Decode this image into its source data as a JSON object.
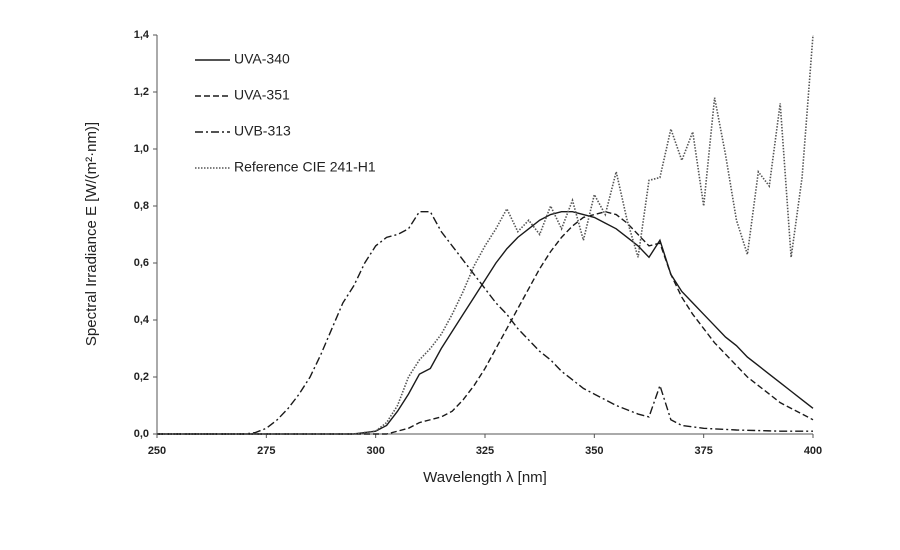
{
  "chart_data": {
    "type": "line",
    "xlabel": "Wavelength λ [nm]",
    "ylabel": "Spectral Irradiance E [W/(m²·nm)]",
    "x": [
      250,
      252.5,
      255,
      257.5,
      260,
      262.5,
      265,
      267.5,
      270,
      272.5,
      275,
      277.5,
      280,
      282.5,
      285,
      287.5,
      290,
      292.5,
      295,
      297.5,
      300,
      302.5,
      305,
      307.5,
      310,
      312.5,
      315,
      317.5,
      320,
      322.5,
      325,
      327.5,
      330,
      332.5,
      335,
      337.5,
      340,
      342.5,
      345,
      347.5,
      350,
      352.5,
      355,
      357.5,
      360,
      362.5,
      365,
      367.5,
      370,
      372.5,
      375,
      377.5,
      380,
      382.5,
      385,
      387.5,
      390,
      392.5,
      395,
      397.5,
      400
    ],
    "series": [
      {
        "name": "UVA-340",
        "color": "#1a1a1a",
        "line_style": "solid",
        "values": [
          0,
          0,
          0,
          0,
          0,
          0,
          0,
          0,
          0,
          0,
          0,
          0,
          0,
          0,
          0,
          0,
          0,
          0,
          0,
          0.005,
          0.01,
          0.03,
          0.08,
          0.14,
          0.21,
          0.23,
          0.3,
          0.36,
          0.42,
          0.48,
          0.54,
          0.6,
          0.65,
          0.69,
          0.72,
          0.75,
          0.77,
          0.78,
          0.78,
          0.77,
          0.76,
          0.74,
          0.72,
          0.69,
          0.66,
          0.62,
          0.68,
          0.56,
          0.5,
          0.46,
          0.42,
          0.38,
          0.34,
          0.31,
          0.27,
          0.24,
          0.21,
          0.18,
          0.15,
          0.12,
          0.09
        ]
      },
      {
        "name": "UVA-351",
        "color": "#1a1a1a",
        "line_style": "dashed",
        "values": [
          0,
          0,
          0,
          0,
          0,
          0,
          0,
          0,
          0,
          0,
          0,
          0,
          0,
          0,
          0,
          0,
          0,
          0,
          0,
          0,
          0,
          0,
          0.01,
          0.02,
          0.04,
          0.05,
          0.06,
          0.08,
          0.12,
          0.17,
          0.23,
          0.3,
          0.37,
          0.44,
          0.51,
          0.58,
          0.64,
          0.69,
          0.73,
          0.76,
          0.77,
          0.78,
          0.77,
          0.74,
          0.7,
          0.66,
          0.67,
          0.56,
          0.48,
          0.42,
          0.37,
          0.32,
          0.28,
          0.24,
          0.2,
          0.17,
          0.14,
          0.11,
          0.09,
          0.07,
          0.05
        ]
      },
      {
        "name": "UVB-313",
        "color": "#1a1a1a",
        "line_style": "dashdot",
        "values": [
          0,
          0,
          0,
          0,
          0,
          0,
          0,
          0,
          0,
          0.005,
          0.02,
          0.05,
          0.09,
          0.14,
          0.2,
          0.28,
          0.37,
          0.46,
          0.52,
          0.6,
          0.66,
          0.69,
          0.7,
          0.72,
          0.78,
          0.78,
          0.71,
          0.66,
          0.61,
          0.56,
          0.51,
          0.46,
          0.42,
          0.37,
          0.33,
          0.29,
          0.26,
          0.22,
          0.19,
          0.16,
          0.14,
          0.12,
          0.1,
          0.085,
          0.07,
          0.06,
          0.17,
          0.05,
          0.03,
          0.025,
          0.02,
          0.018,
          0.016,
          0.014,
          0.013,
          0.012,
          0.011,
          0.01,
          0.01,
          0.01,
          0.01
        ]
      },
      {
        "name": "Reference CIE 241-H1",
        "color": "#555555",
        "line_style": "dotted",
        "values": [
          0,
          0,
          0,
          0,
          0,
          0,
          0,
          0,
          0,
          0,
          0,
          0,
          0,
          0,
          0,
          0,
          0,
          0,
          0,
          0.005,
          0.01,
          0.04,
          0.1,
          0.2,
          0.26,
          0.3,
          0.35,
          0.42,
          0.5,
          0.59,
          0.66,
          0.72,
          0.79,
          0.71,
          0.75,
          0.7,
          0.8,
          0.72,
          0.82,
          0.68,
          0.84,
          0.77,
          0.92,
          0.75,
          0.62,
          0.89,
          0.9,
          1.07,
          0.96,
          1.06,
          0.8,
          1.18,
          0.98,
          0.75,
          0.63,
          0.92,
          0.87,
          1.16,
          0.62,
          0.9,
          1.4
        ]
      }
    ],
    "xlim": [
      250,
      400
    ],
    "xticks": [
      250,
      275,
      300,
      325,
      350,
      375,
      400
    ],
    "ylim": [
      0,
      1.4
    ],
    "yticks": [
      {
        "value": 0,
        "label": "0,0"
      },
      {
        "value": 0.2,
        "label": "0,2"
      },
      {
        "value": 0.4,
        "label": "0,4"
      },
      {
        "value": 0.6,
        "label": "0,6"
      },
      {
        "value": 0.8,
        "label": "0,8"
      },
      {
        "value": 1.0,
        "label": "1,0"
      },
      {
        "value": 1.2,
        "label": "1,2"
      },
      {
        "value": 1.4,
        "label": "1,4"
      }
    ],
    "grid": false,
    "legend": "upper left"
  }
}
